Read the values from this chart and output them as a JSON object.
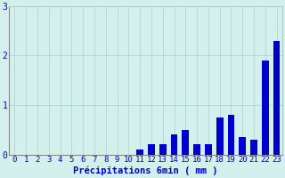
{
  "hours": [
    0,
    1,
    2,
    3,
    4,
    5,
    6,
    7,
    8,
    9,
    10,
    11,
    12,
    13,
    14,
    15,
    16,
    17,
    18,
    19,
    20,
    21,
    22,
    23
  ],
  "values": [
    0,
    0,
    0,
    0,
    0,
    0,
    0,
    0,
    0,
    0,
    0,
    0.1,
    0.2,
    0.2,
    0.4,
    0.5,
    0.2,
    0.2,
    0.75,
    0.8,
    0.35,
    0.3,
    1.9,
    2.3
  ],
  "bar_color": "#0000cc",
  "background_color": "#d4f0ed",
  "grid_color": "#aacfcb",
  "xlabel": "Précipitations 6min ( mm )",
  "ylim": [
    0,
    3.0
  ],
  "yticks": [
    0,
    1,
    2,
    3
  ],
  "bar_width": 0.6,
  "xlabel_fontsize": 7.5,
  "tick_fontsize": 6.5
}
